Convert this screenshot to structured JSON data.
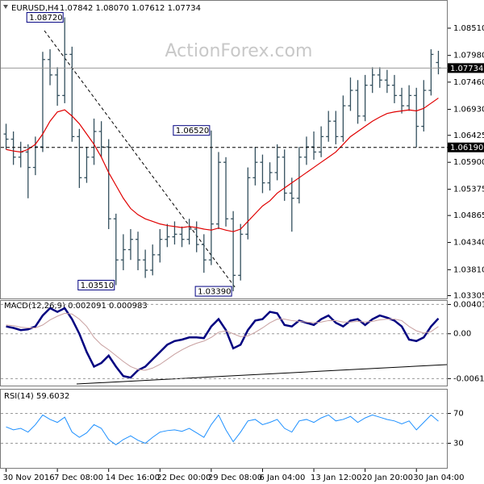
{
  "chart_data": [
    {
      "type": "ohlc",
      "title": "EURUSD,H4",
      "quote": "1.07842 1.08070 1.07612 1.07734",
      "watermark": "ActionForex.com",
      "color": "#34505e",
      "ma_color": "#e00000",
      "xlim": [
        -0.5,
        59.5
      ],
      "xticks": [
        {
          "value": 0,
          "label": "30 Nov 2016"
        },
        {
          "value": 7,
          "label": "7 Dec 08:00"
        },
        {
          "value": 14,
          "label": "14 Dec 16:00"
        },
        {
          "value": 21,
          "label": "22 Dec 00:00"
        },
        {
          "value": 28,
          "label": "29 Dec 08:00"
        },
        {
          "value": 35,
          "label": "6 Jan 04:00"
        },
        {
          "value": 42,
          "label": "13 Jan 12:00"
        },
        {
          "value": 49,
          "label": "20 Jan 20:00"
        },
        {
          "value": 56,
          "label": "30 Jan 04:00"
        }
      ],
      "ylim": [
        1.0325,
        1.0898
      ],
      "yticks": [
        {
          "value": 1.0851,
          "label": "1.08510"
        },
        {
          "value": 1.0798,
          "label": "1.07980"
        },
        {
          "value": 1.0746,
          "label": "1.07460"
        },
        {
          "value": 1.0693,
          "label": "1.06930"
        },
        1.06425,
        {
          "value": 1.059,
          "label": "1.05900"
        },
        1.05375,
        1.04865,
        {
          "value": 1.0434,
          "label": "1.04340"
        },
        {
          "value": 1.0381,
          "label": "1.03810"
        },
        1.03305
      ],
      "open": [
        1.0645,
        1.0635,
        1.06,
        1.061,
        1.058,
        1.062,
        1.079,
        1.076,
        1.072,
        1.08,
        1.064,
        1.056,
        1.06,
        1.065,
        1.062,
        1.048,
        1.04,
        1.042,
        1.044,
        1.04,
        1.038,
        1.041,
        1.044,
        1.0445,
        1.045,
        1.044,
        1.046,
        1.043,
        1.04,
        1.047,
        1.059,
        1.048,
        1.037,
        1.045,
        1.056,
        1.059,
        1.055,
        1.057,
        1.06,
        1.053,
        1.052,
        1.06,
        1.062,
        1.061,
        1.064,
        1.067,
        1.064,
        1.07,
        1.073,
        1.068,
        1.074,
        1.076,
        1.075,
        1.074,
        1.072,
        1.07,
        1.072,
        1.066,
        1.073,
        1.07842
      ],
      "high": [
        1.0665,
        1.065,
        1.063,
        1.0625,
        1.064,
        1.0805,
        1.081,
        1.0775,
        1.0872,
        1.0815,
        1.0655,
        1.062,
        1.0675,
        1.067,
        1.0635,
        1.049,
        1.045,
        1.046,
        1.0455,
        1.042,
        1.043,
        1.046,
        1.047,
        1.0475,
        1.0465,
        1.048,
        1.0475,
        1.045,
        1.0652,
        1.061,
        1.06,
        1.0495,
        1.047,
        1.058,
        1.062,
        1.0605,
        1.059,
        1.0625,
        1.0615,
        1.056,
        1.062,
        1.064,
        1.065,
        1.066,
        1.069,
        1.069,
        1.072,
        1.0755,
        1.075,
        1.076,
        1.0775,
        1.0775,
        1.077,
        1.076,
        1.0735,
        1.074,
        1.0735,
        1.075,
        1.081,
        1.0807
      ],
      "low": [
        1.0615,
        1.0585,
        1.058,
        1.052,
        1.0565,
        1.061,
        1.074,
        1.07,
        1.0705,
        1.063,
        1.054,
        1.055,
        1.0585,
        1.06,
        1.046,
        1.0351,
        1.038,
        1.04,
        1.038,
        1.0365,
        1.037,
        1.0395,
        1.0425,
        1.043,
        1.0425,
        1.043,
        1.0415,
        1.0375,
        1.039,
        1.046,
        1.0465,
        1.0339,
        1.036,
        1.044,
        1.0545,
        1.053,
        1.0535,
        1.0555,
        1.0515,
        1.0455,
        1.051,
        1.0585,
        1.0595,
        1.06,
        1.063,
        1.0625,
        1.063,
        1.069,
        1.0665,
        1.067,
        1.0725,
        1.0735,
        1.0725,
        1.0705,
        1.0685,
        1.069,
        1.0619,
        1.065,
        1.072,
        1.07612
      ],
      "close": [
        1.0635,
        1.06,
        1.061,
        1.058,
        1.062,
        1.079,
        1.076,
        1.072,
        1.08,
        1.064,
        1.056,
        1.06,
        1.065,
        1.062,
        1.048,
        1.04,
        1.042,
        1.044,
        1.04,
        1.038,
        1.041,
        1.044,
        1.0445,
        1.045,
        1.044,
        1.046,
        1.043,
        1.04,
        1.047,
        1.059,
        1.048,
        1.037,
        1.045,
        1.056,
        1.059,
        1.055,
        1.057,
        1.06,
        1.053,
        1.052,
        1.06,
        1.062,
        1.061,
        1.064,
        1.067,
        1.064,
        1.07,
        1.073,
        1.068,
        1.074,
        1.076,
        1.075,
        1.074,
        1.072,
        1.07,
        1.072,
        1.066,
        1.073,
        1.08,
        1.07734
      ],
      "ma": [
        1.0615,
        1.0612,
        1.061,
        1.0615,
        1.0625,
        1.0645,
        1.067,
        1.0688,
        1.0692,
        1.068,
        1.0665,
        1.0645,
        1.0625,
        1.06,
        1.057,
        1.0545,
        1.052,
        1.05,
        1.0488,
        1.048,
        1.0475,
        1.047,
        1.0467,
        1.0465,
        1.0463,
        1.0465,
        1.0463,
        1.046,
        1.0458,
        1.0462,
        1.0458,
        1.0455,
        1.046,
        1.0475,
        1.049,
        1.0505,
        1.0515,
        1.053,
        1.054,
        1.055,
        1.056,
        1.057,
        1.058,
        1.059,
        1.06,
        1.061,
        1.0625,
        1.064,
        1.065,
        1.066,
        1.067,
        1.0678,
        1.0685,
        1.0688,
        1.069,
        1.0692,
        1.069,
        1.0695,
        1.0705,
        1.0715
      ],
      "annotations": [
        {
          "x": 8,
          "value": 1.0872,
          "label": "1.08720"
        },
        {
          "x": 28,
          "value": 1.0652,
          "label": "1.06520"
        },
        {
          "x": 15,
          "value": 1.0351,
          "label": "1.03510"
        },
        {
          "x": 31,
          "value": 1.0339,
          "label": "1.03390"
        }
      ],
      "hlines": [
        {
          "value": 1.07734,
          "label": "1.07734",
          "dashed": false
        },
        {
          "value": 1.0619,
          "label": "1.06190",
          "dashed": true
        }
      ]
    },
    {
      "type": "line",
      "title": "MACD(12,26,9) 0.002091 0.000983",
      "grid": true,
      "ylim": [
        -0.0071,
        0.0045
      ],
      "yticks": [
        0.004011,
        {
          "value": 0,
          "label": "0.00"
        },
        -0.006143
      ],
      "series": [
        {
          "color": "#000080",
          "width": 2.5,
          "values": [
            0.001,
            0.0008,
            0.0005,
            0.0006,
            0.001,
            0.0025,
            0.0035,
            0.003,
            0.0035,
            0.002,
            0.0,
            -0.0025,
            -0.0045,
            -0.004,
            -0.003,
            -0.0045,
            -0.0058,
            -0.006,
            -0.005,
            -0.0045,
            -0.0035,
            -0.0025,
            -0.0015,
            -0.001,
            -0.0008,
            -0.0005,
            -0.0005,
            -0.0006,
            0.001,
            0.002,
            0.0005,
            -0.002,
            -0.0015,
            0.0005,
            0.0018,
            0.002,
            0.003,
            0.0028,
            0.0012,
            0.001,
            0.0018,
            0.0015,
            0.0012,
            0.002,
            0.0025,
            0.0015,
            0.001,
            0.0018,
            0.002,
            0.0012,
            0.002,
            0.0025,
            0.0022,
            0.0018,
            0.001,
            -0.0008,
            -0.001,
            -0.0005,
            0.001,
            0.002091
          ]
        },
        {
          "color": "#c8a0a0",
          "width": 1,
          "values": [
            0.0012,
            0.0011,
            0.0009,
            0.0008,
            0.0008,
            0.0012,
            0.0019,
            0.0024,
            0.0028,
            0.0027,
            0.002,
            0.001,
            -0.0005,
            -0.0015,
            -0.0022,
            -0.003,
            -0.0038,
            -0.0045,
            -0.0049,
            -0.005,
            -0.0047,
            -0.0042,
            -0.0035,
            -0.0028,
            -0.0022,
            -0.0017,
            -0.0013,
            -0.001,
            -0.0005,
            0.0002,
            0.0004,
            0.0,
            -0.0004,
            -0.0003,
            0.0002,
            0.0008,
            0.0015,
            0.002,
            0.002,
            0.0018,
            0.0017,
            0.0016,
            0.0015,
            0.0016,
            0.0018,
            0.0018,
            0.0016,
            0.0016,
            0.0017,
            0.0016,
            0.0017,
            0.0019,
            0.002,
            0.002,
            0.0018,
            0.001,
            0.0004,
            0.0001,
            0.0003,
            0.000983
          ]
        }
      ]
    },
    {
      "type": "line",
      "title": "RSI(14) 59.6032",
      "grid": true,
      "ylim": [
        -3,
        102
      ],
      "yticks": [
        70,
        30
      ],
      "series": [
        {
          "color": "#1e90ff",
          "width": 1,
          "values": [
            52,
            48,
            50,
            45,
            55,
            68,
            62,
            58,
            65,
            45,
            38,
            44,
            55,
            50,
            35,
            28,
            35,
            40,
            34,
            30,
            38,
            45,
            47,
            48,
            46,
            50,
            44,
            38,
            55,
            68,
            48,
            32,
            45,
            60,
            62,
            55,
            58,
            62,
            50,
            45,
            60,
            62,
            58,
            64,
            68,
            60,
            62,
            66,
            58,
            64,
            68,
            65,
            62,
            60,
            56,
            60,
            48,
            58,
            68,
            59.6032
          ]
        }
      ]
    }
  ]
}
